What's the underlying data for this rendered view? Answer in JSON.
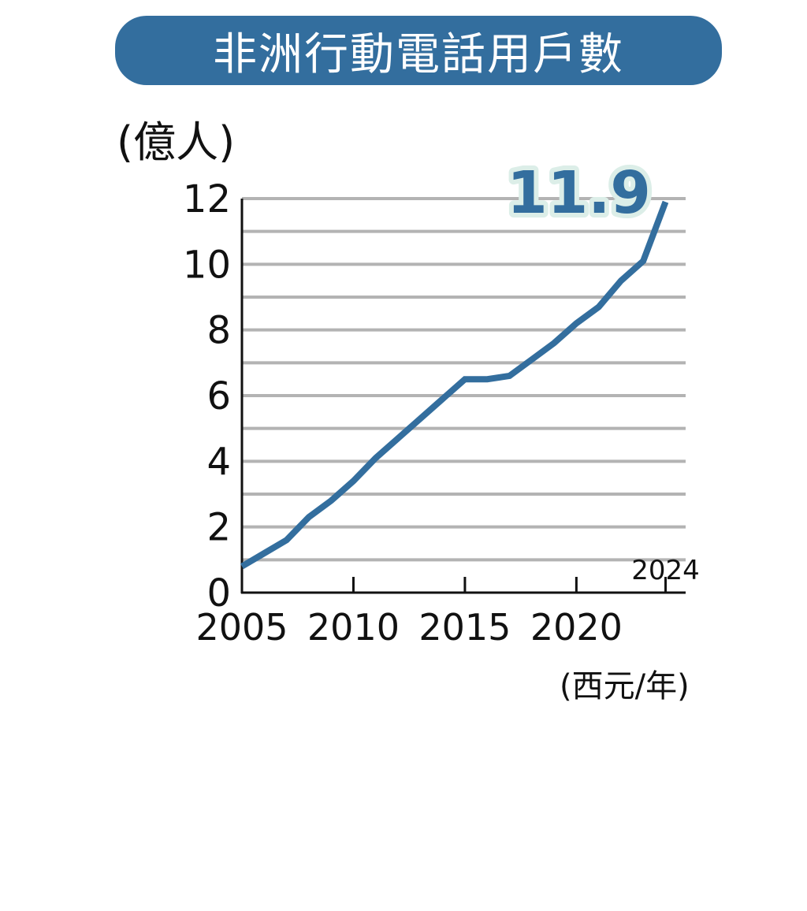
{
  "title": "非洲行動電話用戶數",
  "y_unit_label": "(億人)",
  "x_unit_label": "(西元/年)",
  "colors": {
    "accent": "#336e9e",
    "grid": "#b3b3b3",
    "label_halo": "#dceee8"
  },
  "chart_data": {
    "type": "line",
    "title": "非洲行動電話用戶數",
    "xlabel": "(西元/年)",
    "ylabel": "(億人)",
    "x": [
      2005,
      2006,
      2007,
      2008,
      2009,
      2010,
      2011,
      2012,
      2013,
      2014,
      2015,
      2016,
      2017,
      2018,
      2019,
      2020,
      2021,
      2022,
      2023,
      2024
    ],
    "series": [
      {
        "values": [
          0.8,
          1.2,
          1.6,
          2.3,
          2.8,
          3.4,
          4.1,
          4.7,
          5.3,
          5.9,
          6.5,
          6.5,
          6.6,
          7.1,
          7.6,
          8.2,
          8.7,
          9.5,
          10.1,
          11.9
        ]
      }
    ],
    "xlim": [
      2005,
      2024.9
    ],
    "ylim": [
      0,
      12
    ],
    "y_ticks": [
      0,
      2,
      4,
      6,
      8,
      10,
      12
    ],
    "x_ticks": [
      2005,
      2010,
      2015,
      2020
    ],
    "x_extra_tick": 2024,
    "grid": true,
    "annotation": {
      "text": "11.9",
      "x": 2024,
      "y": 11.9
    }
  }
}
